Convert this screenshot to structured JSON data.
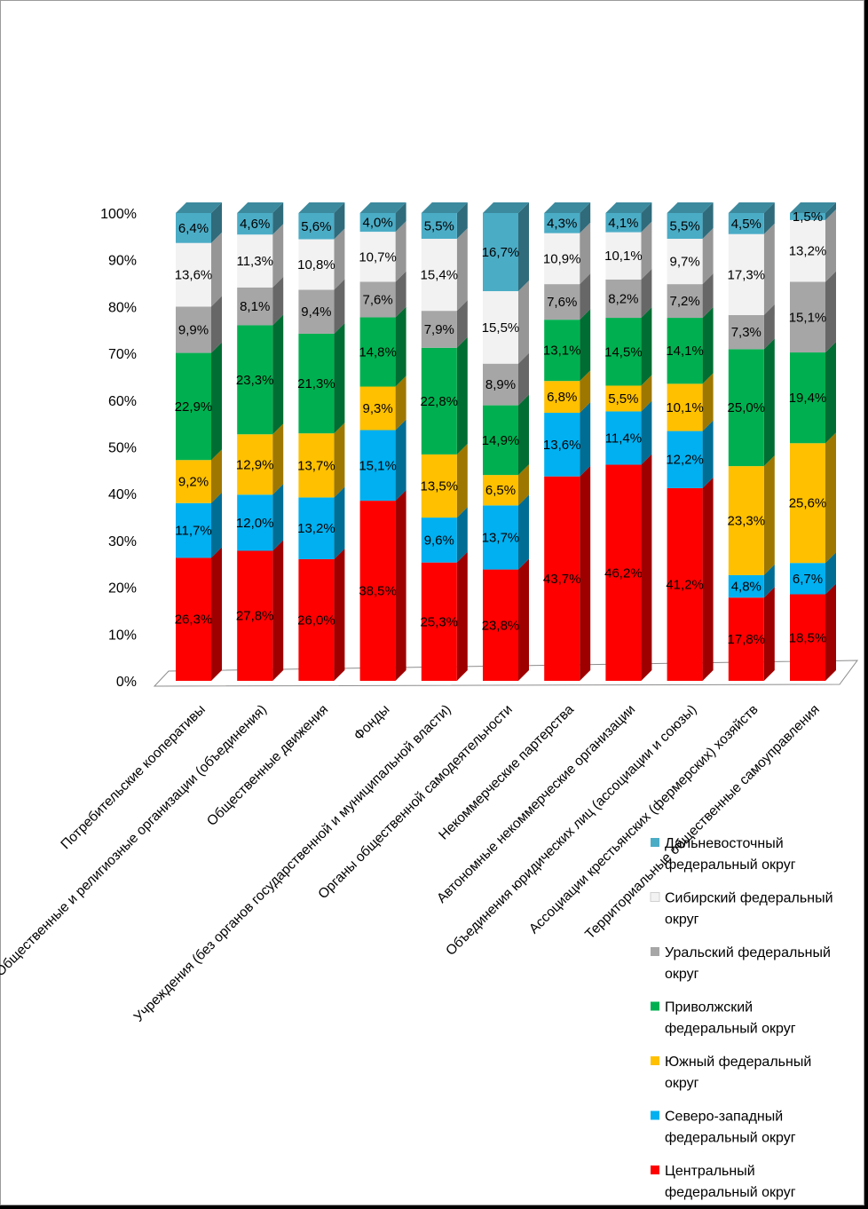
{
  "chart_data": {
    "type": "bar",
    "stacked": "percent",
    "three_d": true,
    "ylim": [
      0,
      100
    ],
    "yticks": [
      "0%",
      "10%",
      "20%",
      "30%",
      "40%",
      "50%",
      "60%",
      "70%",
      "80%",
      "90%",
      "100%"
    ],
    "grid": false,
    "legend_position": "bottom-right",
    "categories": [
      "Потребительские кооперативы",
      "Общественные и религиозные организации (объединения)",
      "Общественные движения",
      "Фонды",
      "Учреждения (без органов государственной и муниципальной власти)",
      "Органы общественной самодеятельности",
      "Некоммерческие партерства",
      "Автономные некоммерческие организации",
      "Объединения юридических лиц (ассоциации и союзы)",
      "Ассоциации крестьянских (фермерских) хозяйств",
      "Территориальные общественные самоуправления"
    ],
    "series": [
      {
        "name": "Центральный федеральный округ",
        "color": "#ff0000",
        "values": [
          26.3,
          27.8,
          26.0,
          38.5,
          25.3,
          23.8,
          43.7,
          46.2,
          41.2,
          17.8,
          18.5
        ],
        "labels": [
          "26,3%",
          "27,8%",
          "26,0%",
          "38,5%",
          "25,3%",
          "23,8%",
          "43,7%",
          "46,2%",
          "41,2%",
          "17,8%",
          "18,5%"
        ]
      },
      {
        "name": "Северо-западный федеральный округ",
        "color": "#00b0f0",
        "values": [
          11.7,
          12.0,
          13.2,
          15.1,
          9.6,
          13.7,
          13.6,
          11.4,
          12.2,
          4.8,
          6.7
        ],
        "labels": [
          "11,7%",
          "12,0%",
          "13,2%",
          "15,1%",
          "9,6%",
          "13,7%",
          "13,6%",
          "11,4%",
          "12,2%",
          "4,8%",
          "6,7%"
        ]
      },
      {
        "name": "Южный федеральный округ",
        "color": "#ffc000",
        "values": [
          9.2,
          12.9,
          13.7,
          9.3,
          13.5,
          6.5,
          6.8,
          5.5,
          10.1,
          23.3,
          25.6
        ],
        "labels": [
          "9,2%",
          "12,9%",
          "13,7%",
          "9,3%",
          "13,5%",
          "6,5%",
          "6,8%",
          "5,5%",
          "10,1%",
          "23,3%",
          "25,6%"
        ]
      },
      {
        "name": "Приволжский федеральный округ",
        "color": "#00b050",
        "values": [
          22.9,
          23.3,
          21.3,
          14.8,
          22.8,
          14.9,
          13.1,
          14.5,
          14.1,
          25.0,
          19.4
        ],
        "labels": [
          "22,9%",
          "23,3%",
          "21,3%",
          "14,8%",
          "22,8%",
          "14,9%",
          "13,1%",
          "14,5%",
          "14,1%",
          "25,0%",
          "19,4%"
        ]
      },
      {
        "name": "Уральский федеральный округ",
        "color": "#a6a6a6",
        "values": [
          9.9,
          8.1,
          9.4,
          7.6,
          7.9,
          8.9,
          7.6,
          8.2,
          7.2,
          7.3,
          15.1
        ],
        "labels": [
          "9,9%",
          "8,1%",
          "9,4%",
          "7,6%",
          "7,9%",
          "8,9%",
          "7,6%",
          "8,2%",
          "7,2%",
          "7,3%",
          "15,1%"
        ]
      },
      {
        "name": "Сибирский федеральный округ",
        "color": "#f2f2f2",
        "values": [
          13.6,
          11.3,
          10.8,
          10.7,
          15.4,
          15.5,
          10.9,
          10.1,
          9.7,
          17.3,
          13.2
        ],
        "labels": [
          "13,6%",
          "11,3%",
          "10,8%",
          "10,7%",
          "15,4%",
          "15,5%",
          "10,9%",
          "10,1%",
          "9,7%",
          "17,3%",
          "13,2%"
        ]
      },
      {
        "name": "Дальневосточный федеральный округ",
        "color": "#4bacc6",
        "values": [
          6.4,
          4.6,
          5.6,
          4.0,
          5.5,
          16.7,
          4.3,
          4.1,
          5.5,
          4.5,
          1.5
        ],
        "labels": [
          "6,4%",
          "4,6%",
          "5,6%",
          "4,0%",
          "5,5%",
          "16,7%",
          "4,3%",
          "4,1%",
          "5,5%",
          "4,5%",
          "1,5%"
        ]
      }
    ],
    "legend": [
      {
        "lines": [
          "Дальневосточный",
          "федеральный округ"
        ],
        "color": "#4bacc6"
      },
      {
        "lines": [
          "Сибирский федеральный",
          "округ"
        ],
        "color": "#f2f2f2"
      },
      {
        "lines": [
          "Уральский федеральный",
          "округ"
        ],
        "color": "#a6a6a6"
      },
      {
        "lines": [
          "Приволжский",
          "федеральный округ"
        ],
        "color": "#00b050"
      },
      {
        "lines": [
          "Южный федеральный",
          "округ"
        ],
        "color": "#ffc000"
      },
      {
        "lines": [
          "Северо-западный",
          "федеральный округ"
        ],
        "color": "#00b0f0"
      },
      {
        "lines": [
          "Центральный",
          "федеральный округ"
        ],
        "color": "#ff0000"
      }
    ]
  }
}
